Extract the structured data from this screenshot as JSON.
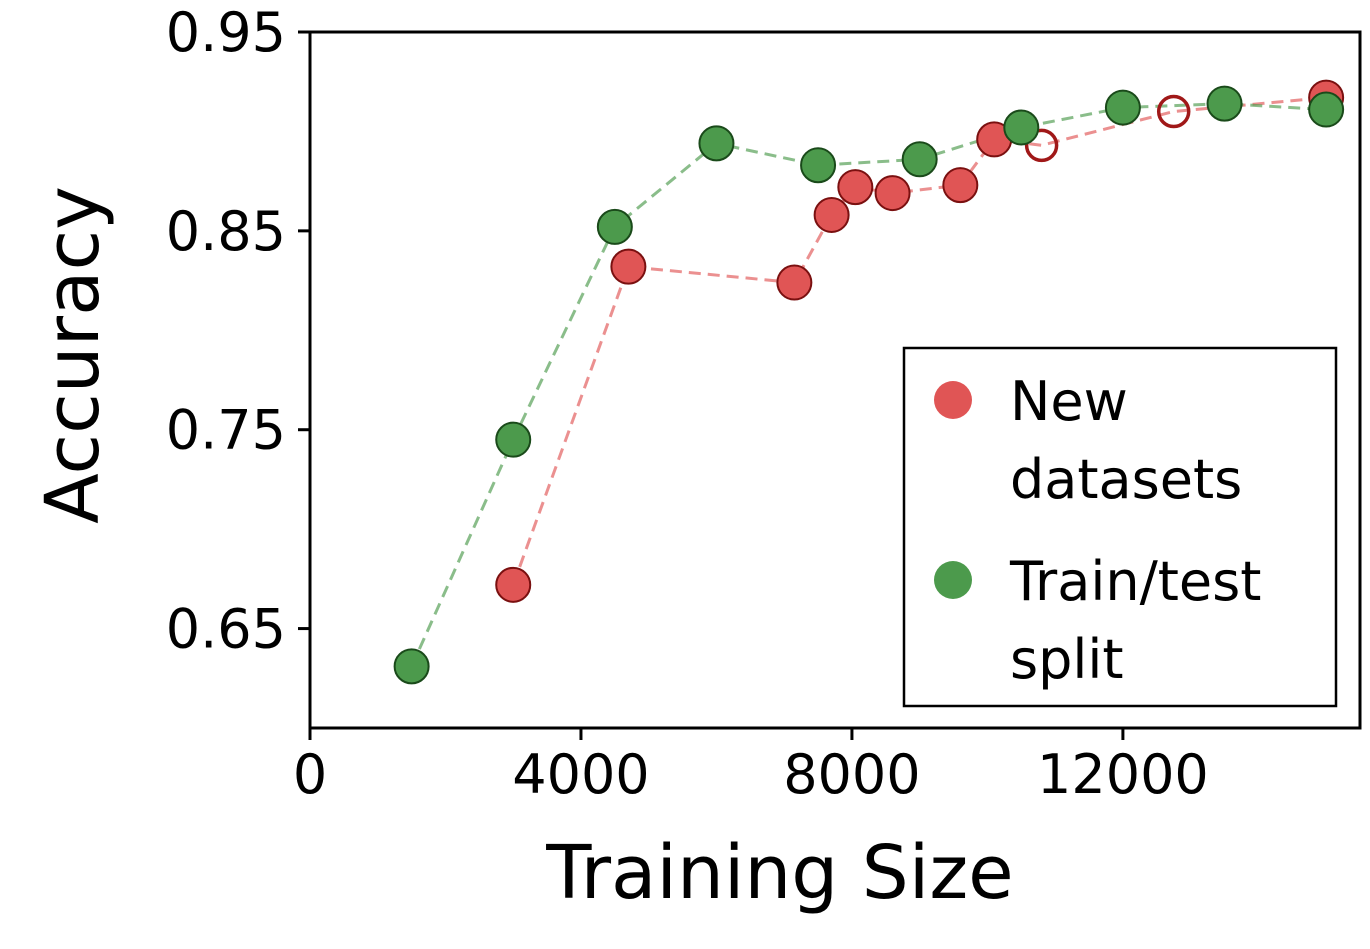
{
  "chart_data": {
    "type": "scatter",
    "xlabel": "Training Size",
    "ylabel": "Accuracy",
    "xlim": [
      0,
      15500
    ],
    "ylim": [
      0.6,
      0.95
    ],
    "xticks": [
      0,
      4000,
      8000,
      12000
    ],
    "xtick_labels": [
      "0",
      "4000",
      "8000",
      "12000"
    ],
    "yticks": [
      0.65,
      0.75,
      0.85,
      0.95
    ],
    "ytick_labels": [
      "0.65",
      "0.75",
      "0.85",
      "0.95"
    ],
    "grid": false,
    "legend_position": "lower-right",
    "series": [
      {
        "name": "New datasets",
        "legend_lines": [
          "New",
          "datasets"
        ],
        "color": "#e05555",
        "edge_color": "#7a1010",
        "line_style": "dashed",
        "points": [
          {
            "x": 3000,
            "y": 0.672,
            "hollow": false
          },
          {
            "x": 4700,
            "y": 0.832,
            "hollow": false
          },
          {
            "x": 7150,
            "y": 0.824,
            "hollow": false
          },
          {
            "x": 7700,
            "y": 0.858,
            "hollow": false
          },
          {
            "x": 8050,
            "y": 0.872,
            "hollow": false
          },
          {
            "x": 8600,
            "y": 0.869,
            "hollow": false
          },
          {
            "x": 9600,
            "y": 0.873,
            "hollow": false
          },
          {
            "x": 10100,
            "y": 0.896,
            "hollow": false
          },
          {
            "x": 10800,
            "y": 0.893,
            "hollow": true
          },
          {
            "x": 12750,
            "y": 0.91,
            "hollow": true
          },
          {
            "x": 15000,
            "y": 0.917,
            "hollow": false
          }
        ]
      },
      {
        "name": "Train/test split",
        "legend_lines": [
          "Train/test",
          "split"
        ],
        "color": "#4c9a4c",
        "edge_color": "#1a4a1a",
        "line_style": "dashed",
        "points": [
          {
            "x": 1500,
            "y": 0.631,
            "hollow": false
          },
          {
            "x": 3000,
            "y": 0.745,
            "hollow": false
          },
          {
            "x": 4500,
            "y": 0.852,
            "hollow": false
          },
          {
            "x": 6000,
            "y": 0.894,
            "hollow": false
          },
          {
            "x": 7500,
            "y": 0.883,
            "hollow": false
          },
          {
            "x": 9000,
            "y": 0.886,
            "hollow": false
          },
          {
            "x": 10500,
            "y": 0.902,
            "hollow": false
          },
          {
            "x": 12000,
            "y": 0.912,
            "hollow": false
          },
          {
            "x": 13500,
            "y": 0.914,
            "hollow": false
          },
          {
            "x": 15000,
            "y": 0.911,
            "hollow": false
          }
        ]
      }
    ]
  }
}
